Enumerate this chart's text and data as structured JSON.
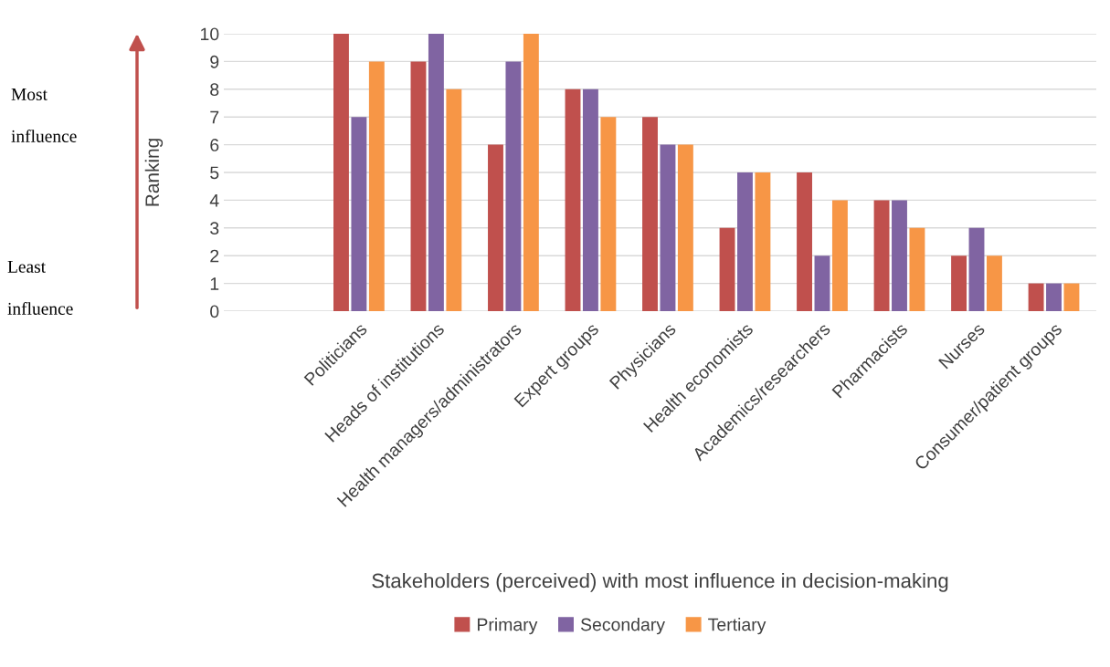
{
  "chart_data": {
    "type": "bar",
    "xlabel": "Stakeholders (perceived) with most influence in decision-making",
    "ylabel": "Ranking",
    "categories": [
      "Politicians",
      "Heads of institutions",
      "Health managers/administrators",
      "Expert groups",
      "Physicians",
      "Health economists",
      "Academics/researchers",
      "Pharmacists",
      "Nurses",
      "Consumer/patient groups"
    ],
    "series": [
      {
        "name": "Primary",
        "color": "#c0504d",
        "values": [
          10,
          9,
          6,
          8,
          7,
          3,
          5,
          4,
          2,
          1
        ]
      },
      {
        "name": "Secondary",
        "color": "#8064a2",
        "values": [
          7,
          10,
          9,
          8,
          6,
          5,
          2,
          4,
          3,
          1
        ]
      },
      {
        "name": "Tertiary",
        "color": "#f79646",
        "values": [
          9,
          8,
          10,
          7,
          6,
          5,
          4,
          3,
          2,
          1
        ]
      }
    ],
    "ylim": [
      0,
      10
    ],
    "yticks": [
      0,
      1,
      2,
      3,
      4,
      5,
      6,
      7,
      8,
      9,
      10
    ],
    "grid": "y",
    "legend": "bottom",
    "annotations": [
      "Most\n\ninfluence",
      "Least\n\ninfluence"
    ]
  }
}
